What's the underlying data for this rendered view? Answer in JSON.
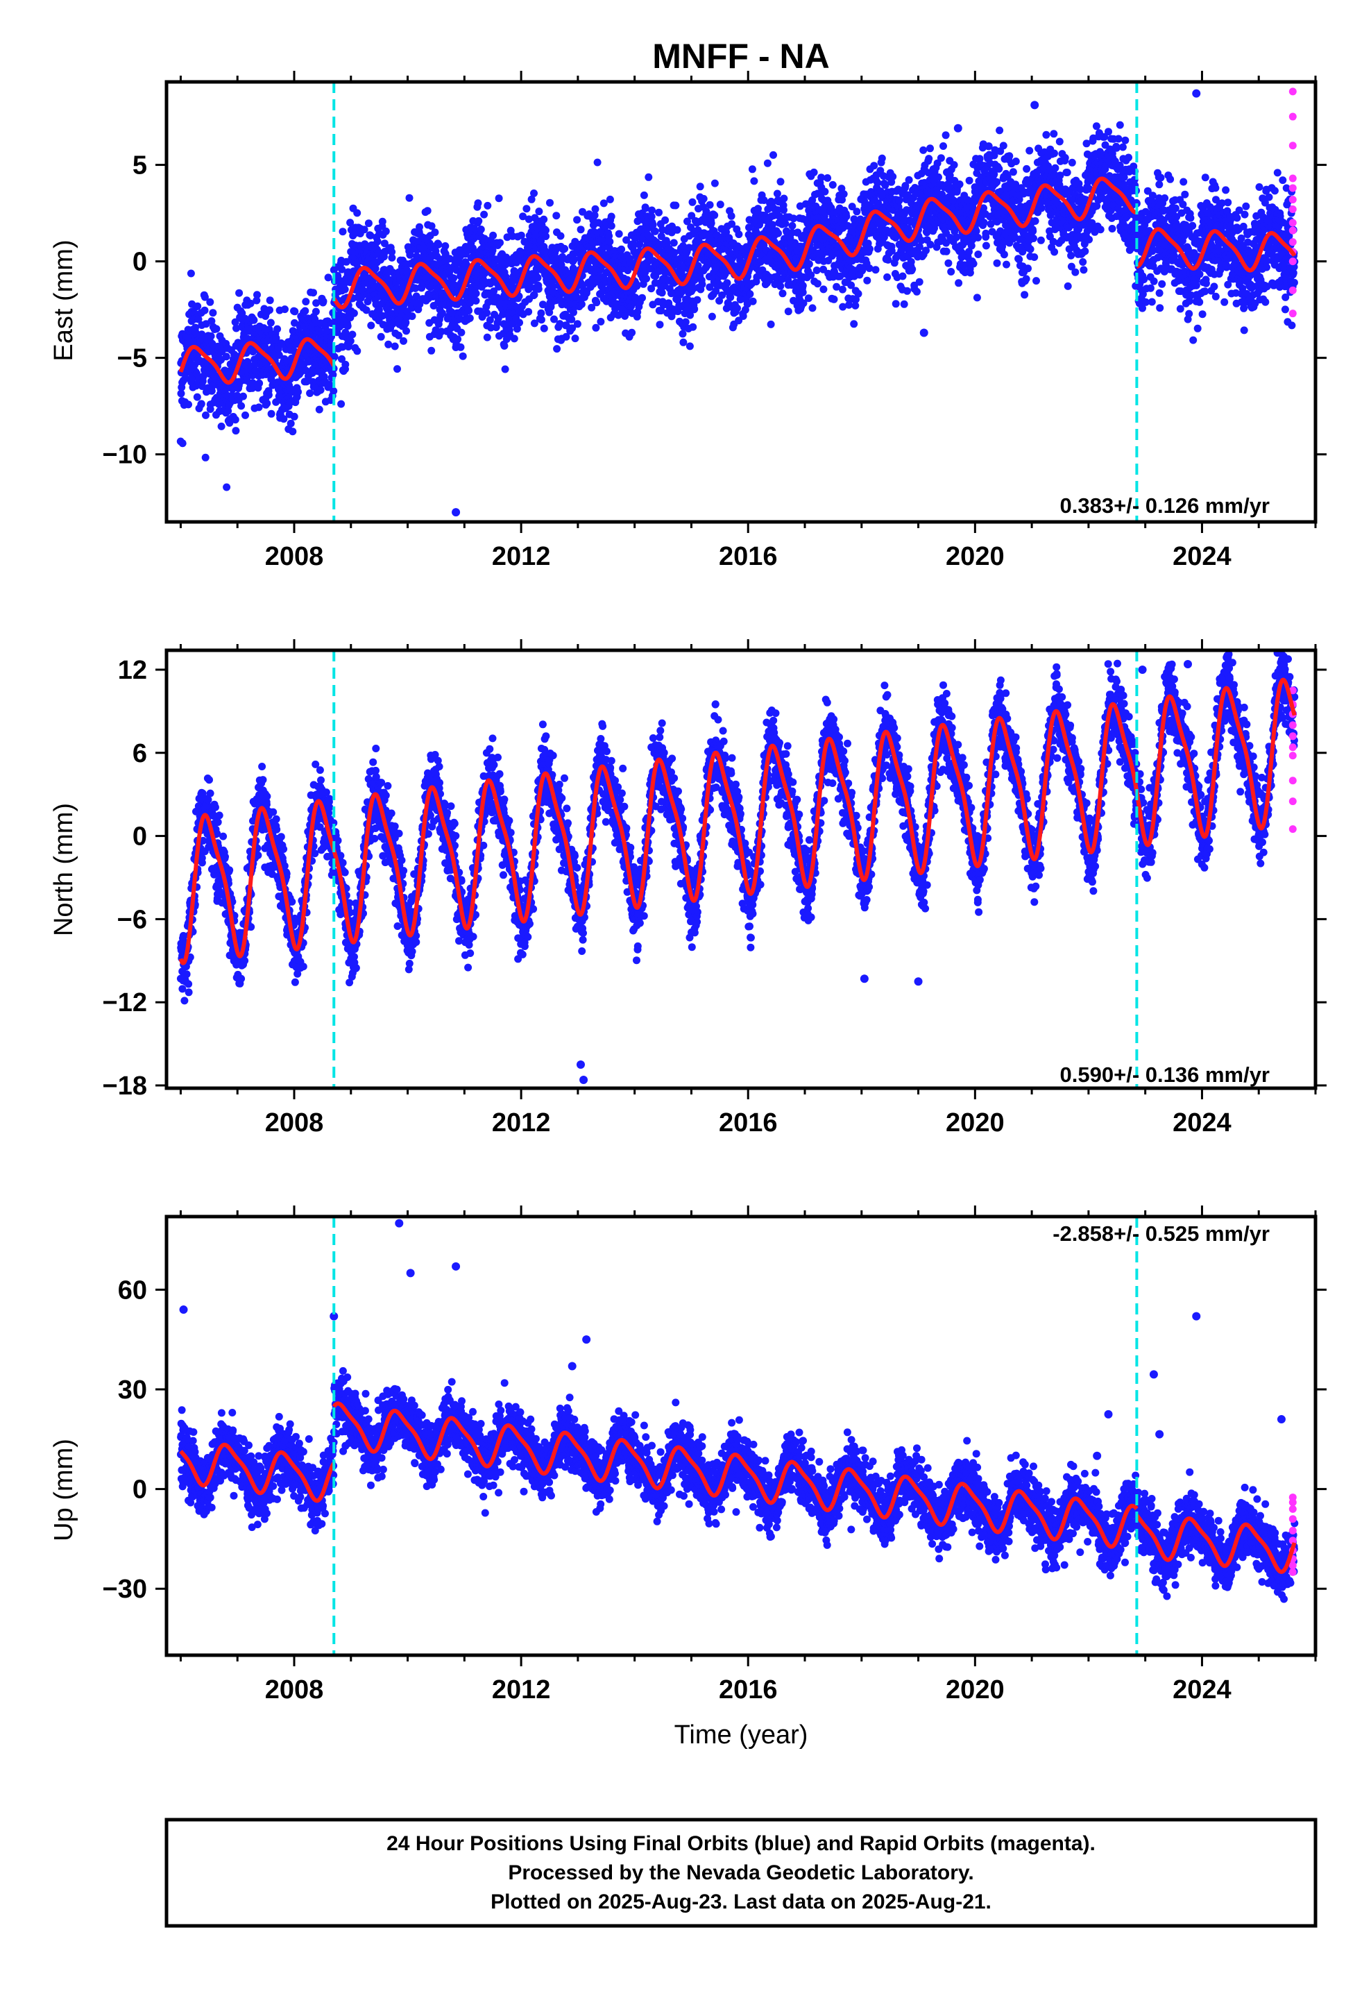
{
  "title": "MNFF - NA",
  "footer": {
    "lines": [
      "24 Hour Positions Using Final Orbits (blue) and Rapid Orbits (magenta).",
      "Processed by the Nevada Geodetic Laboratory.",
      "Plotted on 2025-Aug-23. Last data on 2025-Aug-21."
    ]
  },
  "colors": {
    "final_orbits": "#1a1aff",
    "rapid_orbits": "#ff33ff",
    "model_fit": "#ff1a1a",
    "event_lines": "#00e5e5",
    "frame": "#000000"
  },
  "chart_data": [
    {
      "type": "scatter",
      "name": "east",
      "ylabel": "East (mm)",
      "xlabel": "",
      "xlim": [
        2005.75,
        2026.0
      ],
      "ylim": [
        -13.5,
        9.3
      ],
      "x_ticks": [
        2008,
        2012,
        2016,
        2020,
        2024
      ],
      "y_ticks": [
        -10,
        -5,
        0,
        5
      ],
      "y_tick_labels": [
        "−10",
        "−5",
        "0",
        "5"
      ],
      "rate_label": "0.383+/- 0.126 mm/yr",
      "rate_position": "bottom-right",
      "event_lines_x": [
        2008.7,
        2022.85
      ],
      "offsets_at_events": [
        3.5,
        -2.8
      ],
      "start_x": 2006.0,
      "end_x": 2025.63,
      "base_at_start": -5.4,
      "trend_per_year": [
        [
          2006.0,
          0.2
        ],
        [
          2015.5,
          0.45
        ],
        [
          2016.8,
          0.75
        ],
        [
          2019.0,
          0.35
        ],
        [
          2022.85,
          -0.1
        ],
        [
          2025.63,
          0.0
        ]
      ],
      "seasonal_amplitude": 0.9,
      "seasonal_phase_year": 0.05,
      "noise_sigma": 1.3,
      "final_point_count": 5800,
      "rapid_x": 2025.6,
      "rapid_values": [
        8.8,
        7.5,
        6.0,
        4.3,
        3.8,
        3.2,
        2.7,
        2.0,
        1.6,
        1.0,
        0.5,
        0.0,
        -1.5,
        -2.7
      ],
      "outliers": [
        [
          2010.85,
          -13.0
        ],
        [
          2019.1,
          -3.7
        ],
        [
          2021.05,
          8.1
        ],
        [
          2023.9,
          8.7
        ],
        [
          2019.7,
          6.9
        ]
      ]
    },
    {
      "type": "scatter",
      "name": "north",
      "ylabel": "North (mm)",
      "xlabel": "",
      "xlim": [
        2005.75,
        2026.0
      ],
      "ylim": [
        -18.2,
        13.4
      ],
      "x_ticks": [
        2008,
        2012,
        2016,
        2020,
        2024
      ],
      "y_ticks": [
        -18,
        -12,
        -6,
        0,
        6,
        12
      ],
      "y_tick_labels": [
        "−18",
        "−12",
        "−6",
        "0",
        "6",
        "12"
      ],
      "rate_label": "0.590+/- 0.136 mm/yr",
      "rate_position": "bottom-right",
      "event_lines_x": [
        2008.7,
        2022.85
      ],
      "offsets_at_events": [
        0.0,
        0.0
      ],
      "start_x": 2006.0,
      "end_x": 2025.63,
      "base_at_start": -3.6,
      "trend_per_year": [
        [
          2006.0,
          0.5
        ],
        [
          2019.0,
          0.5
        ],
        [
          2022.85,
          0.6
        ],
        [
          2025.63,
          0.6
        ]
      ],
      "seasonal_amplitude": 4.8,
      "seasonal_phase_year": 0.25,
      "noise_sigma": 1.3,
      "final_point_count": 5800,
      "rapid_x": 2025.6,
      "rapid_values": [
        10.5,
        9.5,
        8.8,
        8.0,
        7.2,
        6.4,
        5.8,
        4.0,
        2.5,
        0.5
      ],
      "outliers": [
        [
          2013.1,
          -17.6
        ],
        [
          2013.05,
          -16.5
        ],
        [
          2023.75,
          12.4
        ],
        [
          2024.45,
          13.0
        ],
        [
          2019.0,
          -10.5
        ],
        [
          2018.05,
          -10.3
        ],
        [
          2022.95,
          12.0
        ]
      ]
    },
    {
      "type": "scatter",
      "name": "up",
      "ylabel": "Up (mm)",
      "xlabel": "Time (year)",
      "xlim": [
        2005.75,
        2026.0
      ],
      "ylim": [
        -50,
        82
      ],
      "x_ticks": [
        2008,
        2012,
        2016,
        2020,
        2024
      ],
      "y_ticks": [
        -30,
        0,
        30,
        60
      ],
      "y_tick_labels": [
        "−30",
        "0",
        "30",
        "60"
      ],
      "rate_label": "-2.858+/- 0.525 mm/yr",
      "rate_position": "top-right",
      "event_lines_x": [
        2008.7,
        2022.85
      ],
      "offsets_at_events": [
        17.0,
        -2.0
      ],
      "start_x": 2006.0,
      "end_x": 2025.63,
      "base_at_start": 9.0,
      "trend_per_year": [
        [
          2006.0,
          -2.3
        ],
        [
          2008.7,
          -2.2
        ],
        [
          2022.85,
          -1.8
        ],
        [
          2025.63,
          -1.8
        ]
      ],
      "seasonal_amplitude": 6.0,
      "seasonal_phase_year": 0.6,
      "noise_sigma": 4.5,
      "final_point_count": 5800,
      "rapid_x": 2025.6,
      "rapid_values": [
        -2.5,
        -4.0,
        -6.0,
        -9.0,
        -12.5,
        -15.5,
        -18.5,
        -21.0,
        -23.0,
        -25.0
      ],
      "outliers": [
        [
          2006.05,
          54.0
        ],
        [
          2008.7,
          52.0
        ],
        [
          2009.85,
          80.0
        ],
        [
          2010.05,
          65.0
        ],
        [
          2010.85,
          67.0
        ],
        [
          2013.15,
          45.0
        ],
        [
          2023.9,
          52.0
        ],
        [
          2023.15,
          34.5
        ],
        [
          2025.4,
          21.0
        ],
        [
          2022.35,
          22.5
        ],
        [
          2023.25,
          16.5
        ],
        [
          2022.15,
          10.0
        ],
        [
          2012.9,
          37.0
        ]
      ]
    }
  ]
}
